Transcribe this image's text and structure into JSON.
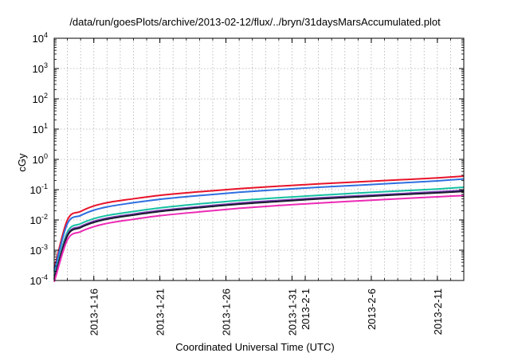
{
  "chart_data": {
    "type": "line",
    "title": "/data/run/goesPlots/archive/2013-02-12/flux/../bryn/31daysMarsAccumulated.plot",
    "xlabel": "Coordinated Universal Time (UTC)",
    "ylabel": "cGy",
    "yscale": "log",
    "ylim": [
      0.0001,
      10000
    ],
    "xlim": [
      "2013-01-13",
      "2013-02-13"
    ],
    "grid": true,
    "yticks": [
      {
        "value": 0.0001,
        "base": "10",
        "exp": "-4"
      },
      {
        "value": 0.001,
        "base": "10",
        "exp": "-3"
      },
      {
        "value": 0.01,
        "base": "10",
        "exp": "-2"
      },
      {
        "value": 0.1,
        "base": "10",
        "exp": "-1"
      },
      {
        "value": 1,
        "base": "10",
        "exp": "0"
      },
      {
        "value": 10,
        "base": "10",
        "exp": "1"
      },
      {
        "value": 100,
        "base": "10",
        "exp": "2"
      },
      {
        "value": 1000,
        "base": "10",
        "exp": "3"
      },
      {
        "value": 10000,
        "base": "10",
        "exp": "4"
      }
    ],
    "xticks": [
      {
        "date": "2013-01-16",
        "label": "2013-1-16"
      },
      {
        "date": "2013-01-21",
        "label": "2013-1-21"
      },
      {
        "date": "2013-01-26",
        "label": "2013-1-26"
      },
      {
        "date": "2013-01-31",
        "label": "2013-1-31"
      },
      {
        "date": "2013-02-01",
        "label": "2013-2-1"
      },
      {
        "date": "2013-02-06",
        "label": "2013-2-6"
      },
      {
        "date": "2013-02-11",
        "label": "2013-2-11"
      }
    ],
    "x": [
      "2013-01-13",
      "2013-01-14",
      "2013-01-15",
      "2013-01-16",
      "2013-01-17",
      "2013-01-19",
      "2013-01-21",
      "2013-01-24",
      "2013-01-27",
      "2013-01-30",
      "2013-02-02",
      "2013-02-05",
      "2013-02-08",
      "2013-02-11",
      "2013-02-13"
    ],
    "series": [
      {
        "color": "#e8132a",
        "values": [
          0.00025,
          0.01,
          0.019,
          0.029,
          0.037,
          0.05,
          0.065,
          0.085,
          0.108,
          0.13,
          0.155,
          0.18,
          0.21,
          0.245,
          0.28
        ]
      },
      {
        "color": "#2f6fe0",
        "values": [
          0.0002,
          0.0075,
          0.014,
          0.021,
          0.027,
          0.037,
          0.048,
          0.064,
          0.082,
          0.1,
          0.12,
          0.14,
          0.165,
          0.195,
          0.225
        ]
      },
      {
        "color": "#16c0a2",
        "values": [
          0.00014,
          0.004,
          0.0075,
          0.011,
          0.014,
          0.019,
          0.025,
          0.034,
          0.044,
          0.054,
          0.065,
          0.077,
          0.09,
          0.105,
          0.12
        ]
      },
      {
        "color": "#7a3db5",
        "values": [
          0.00012,
          0.0033,
          0.0061,
          0.009,
          0.0115,
          0.0157,
          0.0205,
          0.0275,
          0.036,
          0.0443,
          0.0533,
          0.0625,
          0.073,
          0.085,
          0.095
        ]
      },
      {
        "color": "#1a1a2e",
        "values": [
          0.00011,
          0.003,
          0.0056,
          0.0083,
          0.0106,
          0.0145,
          0.019,
          0.0255,
          0.0333,
          0.041,
          0.0494,
          0.058,
          0.0678,
          0.0785,
          0.088
        ]
      },
      {
        "color": "#ec2ab5",
        "values": [
          9e-05,
          0.0022,
          0.0041,
          0.006,
          0.0077,
          0.0105,
          0.0138,
          0.0185,
          0.0242,
          0.03,
          0.036,
          0.0425,
          0.05,
          0.058,
          0.064
        ]
      }
    ]
  }
}
